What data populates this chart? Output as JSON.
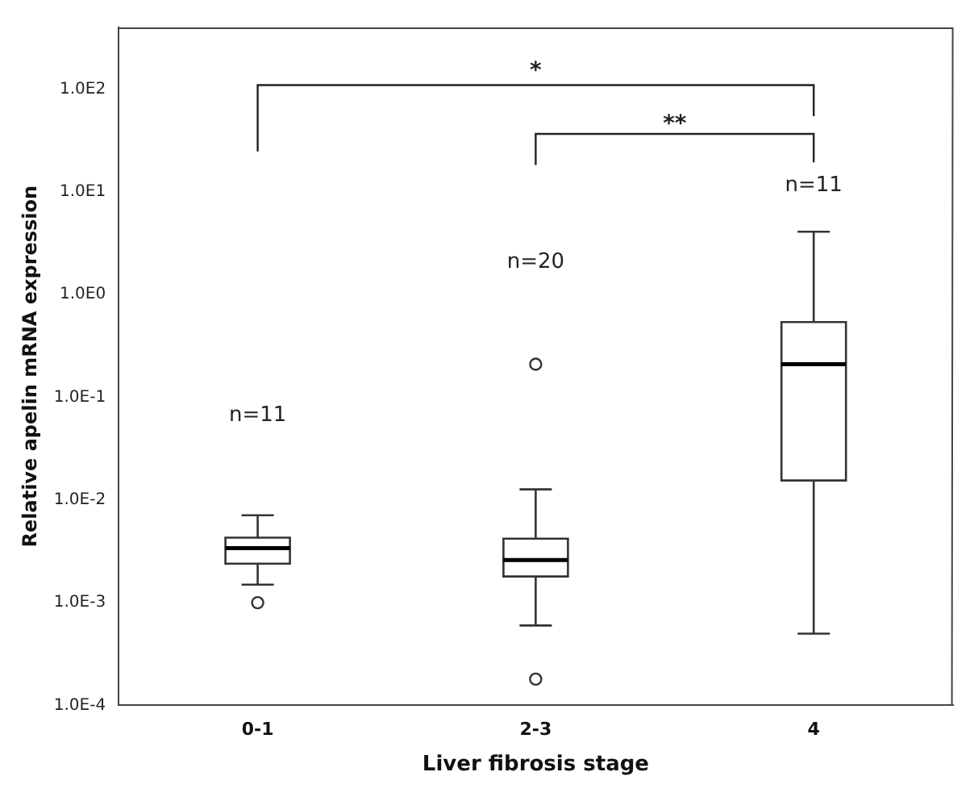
{
  "chart_data": {
    "type": "box",
    "xlabel": "Liver fibrosis stage",
    "ylabel": "Relative apelin mRNA expression",
    "categories": [
      "0-1",
      "2-3",
      "4"
    ],
    "boxes": [
      {
        "low": 0.0015,
        "q1": 0.0024,
        "median": 0.0034,
        "q3": 0.0043,
        "high": 0.0071,
        "outliers": [
          0.001
        ]
      },
      {
        "low": 0.0006,
        "q1": 0.0018,
        "median": 0.0026,
        "q3": 0.0042,
        "high": 0.0127,
        "outliers": [
          0.00018,
          0.21
        ]
      },
      {
        "low": 0.0005,
        "q1": 0.0155,
        "median": 0.21,
        "q3": 0.54,
        "high": 4.1
      }
    ],
    "log": "y",
    "ylim": [
      0.0001,
      400
    ],
    "yticks": [
      {
        "value": 0.0001,
        "label": "1.0E-4"
      },
      {
        "value": 0.001,
        "label": "1.0E-3"
      },
      {
        "value": 0.01,
        "label": "1.0E-2"
      },
      {
        "value": 0.1,
        "label": "1.0E-1"
      },
      {
        "value": 1,
        "label": "1.0E0"
      },
      {
        "value": 10,
        "label": "1.0E1"
      },
      {
        "value": 100,
        "label": "1.0E2"
      }
    ],
    "grid": false,
    "legend": false,
    "annotations": [
      "n=11",
      "n=20",
      "n=11",
      "*",
      "**"
    ]
  }
}
